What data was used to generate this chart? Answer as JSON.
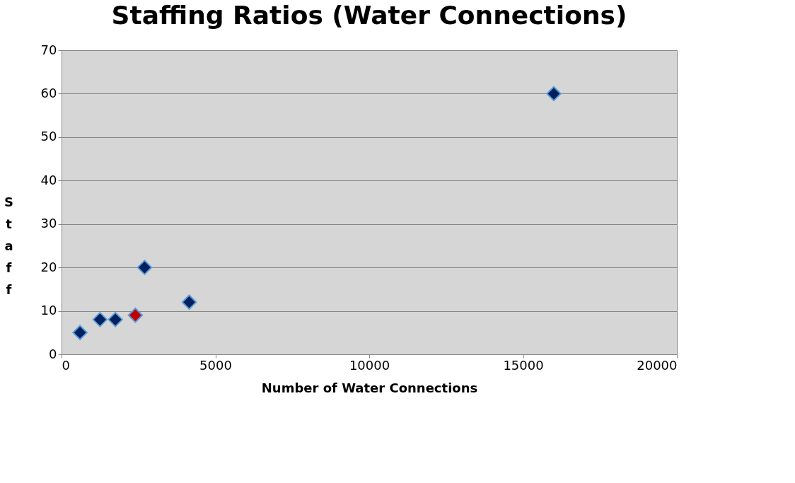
{
  "chart_data": {
    "type": "scatter",
    "title": "Staffing Ratios (Water Connections)",
    "xlabel": "Number of Water Connections",
    "ylabel": "Staff",
    "series": [
      {
        "color": "#002060",
        "values": [
          5,
          8,
          8,
          20,
          12,
          60
        ],
        "x": [
          600,
          1250,
          1750,
          2700,
          4150,
          16000
        ]
      },
      {
        "color": "#c00000",
        "values": [
          9
        ],
        "x": [
          2400
        ]
      }
    ],
    "xlim": [
      0,
      20000
    ],
    "xticks": [
      0,
      5000,
      10000,
      15000,
      20000
    ],
    "ylim": [
      0,
      70
    ],
    "yticks": [
      0,
      10,
      20,
      30,
      40,
      50,
      60,
      70
    ],
    "grid": "y",
    "marker": "diamond",
    "legend": false
  }
}
